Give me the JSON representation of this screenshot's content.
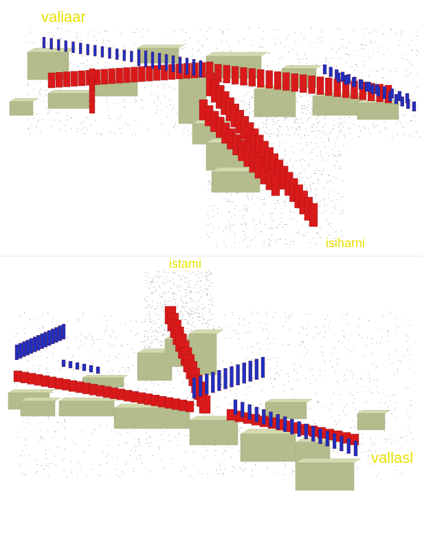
{
  "top_view": {
    "label_top_left": "valiaar",
    "label_bottom_right": "isiharni"
  },
  "bottom_view": {
    "label_top": "istami",
    "label_right": "vallasl"
  },
  "colors": {
    "building": "#d4d9b0",
    "building_side": "#b4bb8c",
    "red_bars": "#d91a1a",
    "blue_bars": "#1f2fbf",
    "points": "#8a8a8a",
    "label": "#e8e000"
  }
}
